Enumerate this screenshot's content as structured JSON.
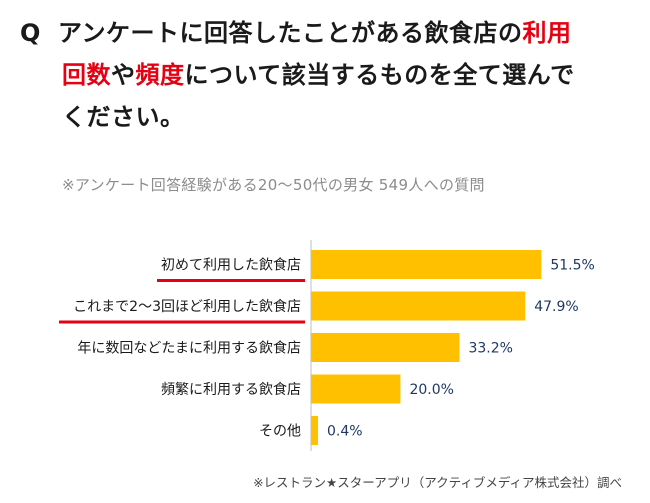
{
  "question": {
    "mark": "Q",
    "line1_a": "アンケートに回答したことがある飲食店の",
    "line1_b": "利用",
    "line2_a": "回数",
    "line2_b": "や",
    "line2_c": "頻度",
    "line2_d": "について該当するものを全て選んで",
    "line3": "ください。"
  },
  "subtitle": "※アンケート回答経験がある20～50代の男女 549人への質問",
  "footnote": "※レストラン★スターアプリ（アクティブメディア株式会社）調べ",
  "colors": {
    "bar": "#ffc000",
    "value_text": "#1f3864",
    "highlight": "#e60012"
  },
  "chart_data": {
    "type": "bar",
    "orientation": "horizontal",
    "categories": [
      "初めて利用した飲食店",
      "これまで2～3回ほど利用した飲食店",
      "年に数回などたまに利用する飲食店",
      "頻繁に利用する飲食店",
      "その他"
    ],
    "values": [
      51.5,
      47.9,
      33.2,
      20.0,
      0.4
    ],
    "value_labels": [
      "51.5%",
      "47.9%",
      "33.2%",
      "20.0%",
      "0.4%"
    ],
    "highlighted_categories": [
      0,
      1
    ],
    "xlim": [
      0,
      55
    ]
  }
}
